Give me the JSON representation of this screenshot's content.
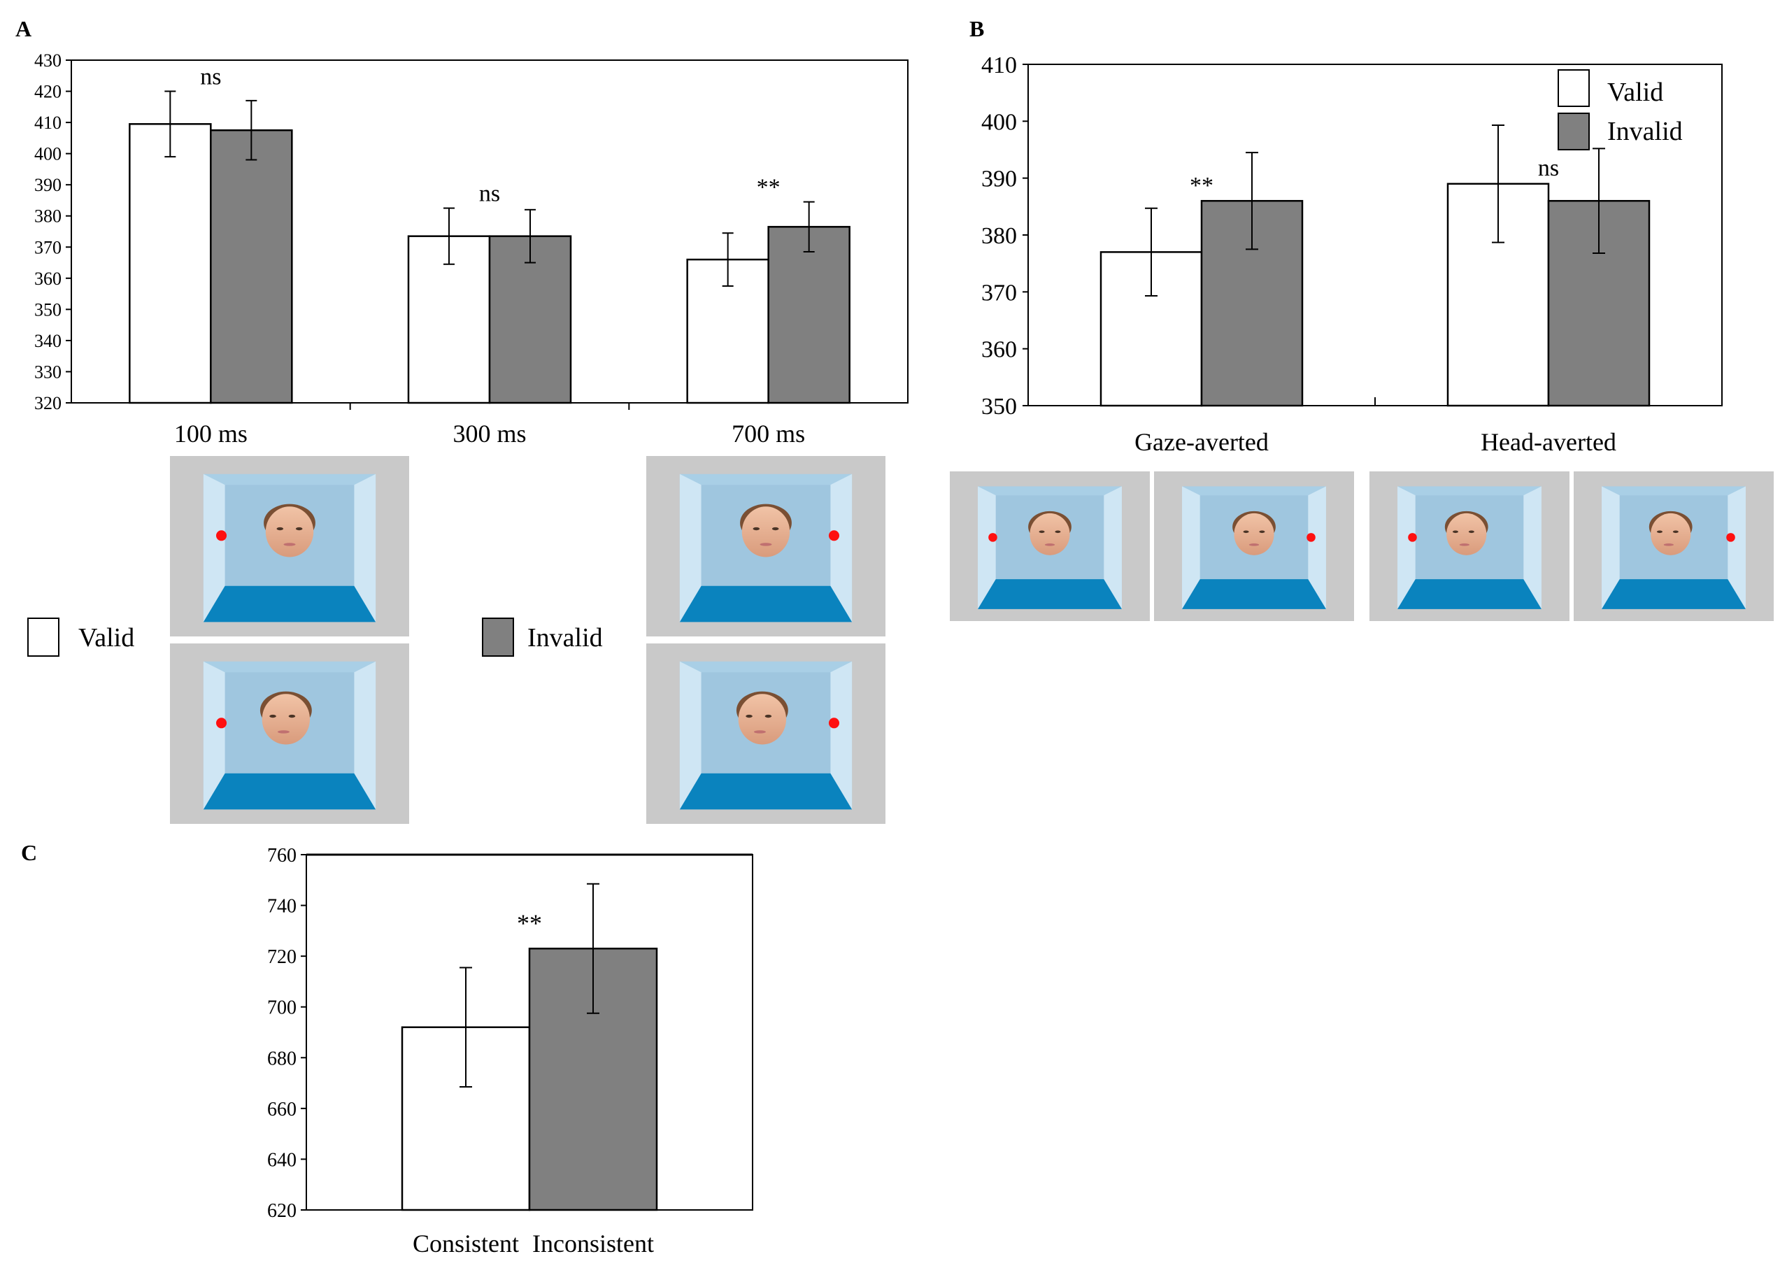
{
  "panels": [
    {
      "label": "A"
    },
    {
      "label": "B"
    },
    {
      "label": "C"
    }
  ],
  "chart_data": [
    {
      "panel": "A",
      "type": "bar",
      "categories": [
        "100 ms",
        "300 ms",
        "700 ms"
      ],
      "series": [
        {
          "name": "Valid",
          "color": "#ffffff",
          "values": [
            409.5,
            373.5,
            366
          ],
          "err": [
            10.5,
            9,
            8.5
          ]
        },
        {
          "name": "Invalid",
          "color": "#808080",
          "values": [
            407.5,
            373.5,
            376.5
          ],
          "err": [
            9.5,
            8.5,
            8
          ]
        }
      ],
      "significance": [
        "ns",
        "ns",
        "**"
      ],
      "ylim": [
        320,
        430
      ],
      "yticks": [
        320,
        330,
        340,
        350,
        360,
        370,
        380,
        390,
        400,
        410,
        420,
        430
      ],
      "legend": {
        "items": [
          "Valid",
          "Invalid"
        ],
        "placement": "below"
      },
      "xlabel": "",
      "ylabel": "",
      "title": ""
    },
    {
      "panel": "B",
      "type": "bar",
      "categories": [
        "Gaze-averted",
        "Head-averted"
      ],
      "series": [
        {
          "name": "Valid",
          "color": "#ffffff",
          "values": [
            377,
            389
          ],
          "err": [
            7.7,
            10.3
          ]
        },
        {
          "name": "Invalid",
          "color": "#808080",
          "values": [
            386,
            386
          ],
          "err": [
            8.5,
            9.2
          ]
        }
      ],
      "significance": [
        "**",
        "ns"
      ],
      "ylim": [
        350,
        410
      ],
      "yticks": [
        350,
        360,
        370,
        380,
        390,
        400,
        410
      ],
      "legend": {
        "items": [
          "Valid",
          "Invalid"
        ],
        "placement": "top-right"
      },
      "xlabel": "",
      "ylabel": "",
      "title": ""
    },
    {
      "panel": "C",
      "type": "bar",
      "categories": [
        "Consistent",
        "Inconsistent"
      ],
      "values": [
        692,
        723
      ],
      "err": [
        23.5,
        25.5
      ],
      "colors": [
        "#ffffff",
        "#808080"
      ],
      "significance": "**",
      "ylim": [
        620,
        760
      ],
      "yticks": [
        620,
        640,
        660,
        680,
        700,
        720,
        740,
        760
      ],
      "xlabel": "",
      "ylabel": "",
      "title": ""
    }
  ],
  "stimuli": {
    "panel_a_images": [
      {
        "name": "stimulus-100ms-gaze-averted",
        "dot": "left",
        "head_turn": 0
      },
      {
        "name": "stimulus-100ms-head-averted",
        "dot": "left",
        "head_turn": -1
      },
      {
        "name": "stimulus-700ms-gaze-averted",
        "dot": "right",
        "head_turn": 0
      },
      {
        "name": "stimulus-700ms-head-averted",
        "dot": "right",
        "head_turn": -1
      }
    ],
    "panel_b_images": [
      {
        "name": "stimulus-gaze-averted-valid",
        "dot": "left",
        "head_turn": 0
      },
      {
        "name": "stimulus-gaze-averted-invalid",
        "dot": "right",
        "head_turn": 0
      },
      {
        "name": "stimulus-head-averted-valid",
        "dot": "left",
        "head_turn": -1
      },
      {
        "name": "stimulus-head-averted-invalid",
        "dot": "right",
        "head_turn": -1
      }
    ]
  }
}
